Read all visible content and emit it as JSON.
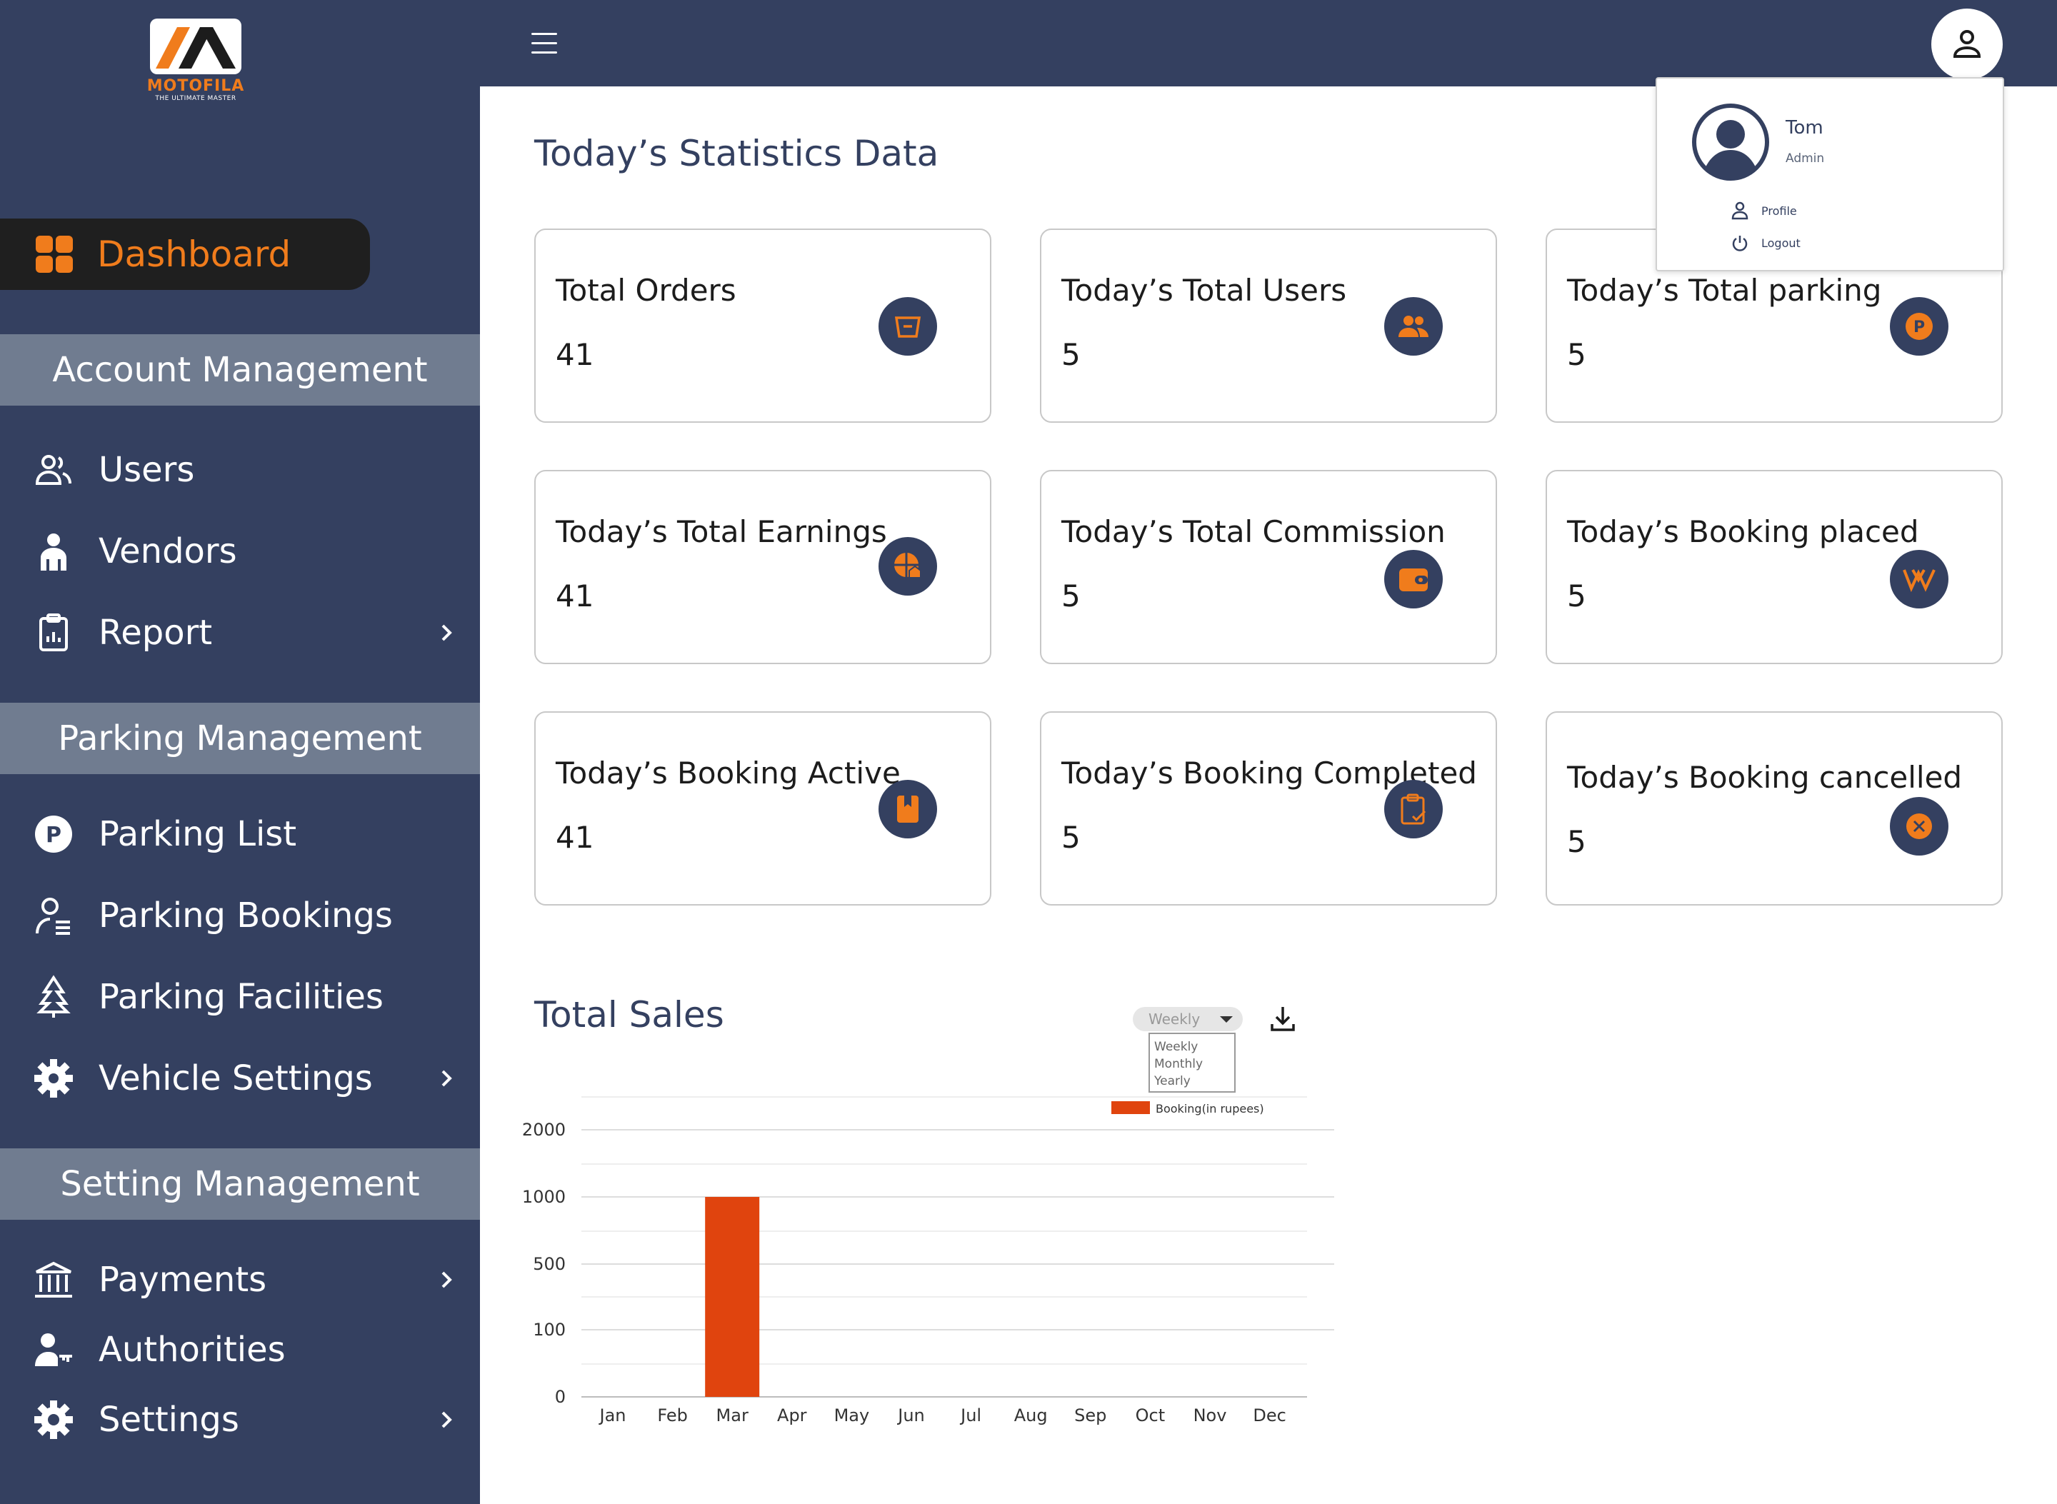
{
  "brand": {
    "name": "MOTOFILA",
    "tagline": "THE ULTIMATE MASTER"
  },
  "sidebar": {
    "dashboard_label": "Dashboard",
    "sections": [
      {
        "title": "Account Management",
        "items": [
          {
            "label": "Users",
            "icon": "users-icon",
            "chevron": false
          },
          {
            "label": "Vendors",
            "icon": "vendor-icon",
            "chevron": false
          },
          {
            "label": "Report",
            "icon": "report-icon",
            "chevron": true
          }
        ]
      },
      {
        "title": "Parking Management",
        "items": [
          {
            "label": "Parking List",
            "icon": "parking-icon",
            "chevron": false
          },
          {
            "label": "Parking Bookings",
            "icon": "booking-user-icon",
            "chevron": false
          },
          {
            "label": "Parking Facilities",
            "icon": "tree-icon",
            "chevron": false
          },
          {
            "label": "Vehicle Settings",
            "icon": "gear-icon",
            "chevron": true
          }
        ]
      },
      {
        "title": "Setting Management",
        "items": [
          {
            "label": "Payments",
            "icon": "bank-icon",
            "chevron": true
          },
          {
            "label": "Authorities",
            "icon": "user-key-icon",
            "chevron": false
          },
          {
            "label": "Settings",
            "icon": "settings-icon",
            "chevron": true
          }
        ]
      }
    ]
  },
  "header": {
    "menu_icon": "hamburger-icon",
    "account_icon": "user-icon"
  },
  "profile_menu": {
    "name": "Tom",
    "role": "Admin",
    "items": [
      "Profile",
      "Logout"
    ]
  },
  "main": {
    "title": "Today’s Statistics Data",
    "cards": [
      {
        "title": "Total Orders",
        "value": "41",
        "icon": "cart-icon"
      },
      {
        "title": "Today’s Total Users",
        "value": "5",
        "icon": "group-icon"
      },
      {
        "title": "Today’s Total parking",
        "value": "5",
        "icon": "parking-badge-icon"
      },
      {
        "title": "Today’s Total Earnings",
        "value": "41",
        "icon": "earnings-icon"
      },
      {
        "title": "Today’s Total Commission",
        "value": "5",
        "icon": "wallet-icon"
      },
      {
        "title": "Today’s Booking placed",
        "value": "5",
        "icon": "booking-placed-icon"
      },
      {
        "title": "Today’s Booking Active",
        "value": "41",
        "icon": "book-icon"
      },
      {
        "title": "Today’s Booking Completed",
        "value": "5",
        "icon": "clipboard-check-icon"
      },
      {
        "title": "Today’s Booking cancelled",
        "value": "5",
        "icon": "cancel-icon"
      }
    ]
  },
  "sales": {
    "title": "Total Sales",
    "period_selected": "Weekly",
    "period_options": [
      "Weekly",
      "Monthly",
      "Yearly"
    ],
    "download_icon": "download-icon"
  },
  "chart_data": {
    "type": "bar",
    "title": "",
    "categories": [
      "Jan",
      "Feb",
      "Mar",
      "Apr",
      "May",
      "Jun",
      "Jul",
      "Aug",
      "Sep",
      "Oct",
      "Nov",
      "Dec"
    ],
    "series": [
      {
        "name": "Booking(in rupees)",
        "color": "#e0440e",
        "values": [
          0,
          0,
          1000,
          0,
          0,
          0,
          0,
          0,
          0,
          0,
          0,
          0
        ]
      }
    ],
    "y_ticks": [
      "0",
      "100",
      "500",
      "1000",
      "2000"
    ],
    "legend_position": "top",
    "grid": true
  },
  "colors": {
    "sidebar": "#344060",
    "accent": "#f07c1c",
    "section": "#707c90",
    "bar": "#e0440e"
  }
}
